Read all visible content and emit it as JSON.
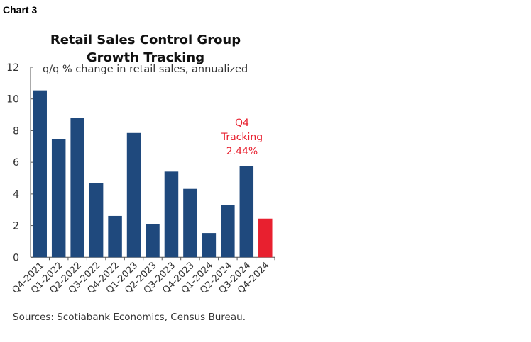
{
  "chart_label": "Chart 3",
  "chart_data": {
    "type": "bar",
    "title": "Retail Sales Control Group Growth Tracking",
    "title_lines": [
      "Retail Sales Control Group",
      "Growth Tracking"
    ],
    "subtitle": "q/q % change in retail sales, annualized",
    "xlabel": "",
    "ylabel": "",
    "ylim": [
      0,
      12
    ],
    "yticks": [
      0,
      2,
      4,
      6,
      8,
      10,
      12
    ],
    "categories": [
      "Q4-2021",
      "Q1-2022",
      "Q2-2022",
      "Q3-2022",
      "Q4-2022",
      "Q1-2023",
      "Q2-2023",
      "Q3-2023",
      "Q4-2023",
      "Q1-2024",
      "Q2-2024",
      "Q3-2024",
      "Q4-2024"
    ],
    "values": [
      10.54,
      7.45,
      8.79,
      4.7,
      2.61,
      7.85,
      2.08,
      5.41,
      4.32,
      1.53,
      3.32,
      5.77,
      2.44
    ],
    "colors": {
      "actual": "#1f497d",
      "tracking": "#e8202f"
    },
    "annotation": {
      "lines": [
        "Q4",
        "Tracking",
        "2.44%"
      ]
    },
    "grid": false,
    "legend": "none"
  },
  "source": "Sources: Scotiabank Economics, Census Bureau."
}
